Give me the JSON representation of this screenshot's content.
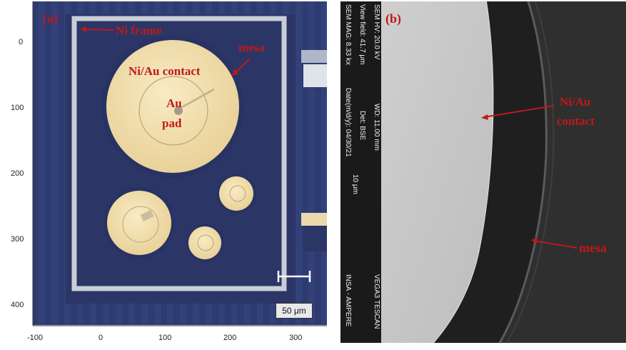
{
  "panel_a": {
    "label": "(a)",
    "annotations": {
      "ni_frame": "Ni frame",
      "mesa": "mesa",
      "contact": "Ni/Au contact",
      "au": "Au",
      "pad": "pad"
    },
    "scalebar": "50 μm",
    "x_ticks": [
      "-100",
      "0",
      "100",
      "200",
      "300"
    ],
    "y_ticks": [
      "0",
      "100",
      "200",
      "300",
      "400"
    ]
  },
  "panel_b": {
    "label": "(b)",
    "annotations": {
      "ni": "Ni/Au",
      "contact": "contact",
      "mesa": "mesa"
    },
    "sem_info": {
      "col1": "SEM HV: 20.0 kV",
      "col1b": "WD: 11.00 mm",
      "col2": "View field: 41.7 μm",
      "col2b": "Det: BSE",
      "col2c": "10 μm",
      "col3": "SEM MAG: 8.33 kx",
      "col3b": "Date(m/d/y): 04/30/21",
      "brand": "VEGA3 TESCAN",
      "site": "INSA - AMPERE"
    }
  },
  "colors": {
    "substrate": "#2d3a6e",
    "frame": "#c9cdd6",
    "gold": "#f2dfae",
    "annotation": "#c01818"
  }
}
